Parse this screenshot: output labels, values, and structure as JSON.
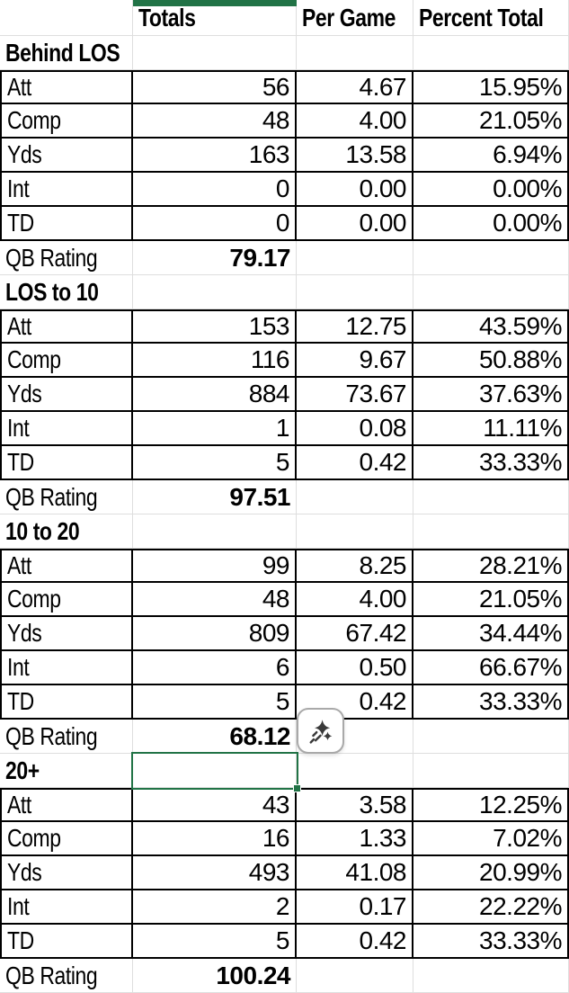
{
  "colors": {
    "selection_green": "#217346",
    "grid_line": "#dedede",
    "data_border": "#000000",
    "background": "#ffffff"
  },
  "header": {
    "columns": [
      "Totals",
      "Per Game",
      "Percent Total"
    ]
  },
  "sections": [
    {
      "title": "Behind LOS",
      "rows": [
        {
          "label": "Att",
          "totals": "56",
          "per_game": "4.67",
          "percent_total": "15.95%"
        },
        {
          "label": "Comp",
          "totals": "48",
          "per_game": "4.00",
          "percent_total": "21.05%"
        },
        {
          "label": "Yds",
          "totals": "163",
          "per_game": "13.58",
          "percent_total": "6.94%"
        },
        {
          "label": "Int",
          "totals": "0",
          "per_game": "0.00",
          "percent_total": "0.00%"
        },
        {
          "label": "TD",
          "totals": "0",
          "per_game": "0.00",
          "percent_total": "0.00%"
        }
      ],
      "qb_rating": {
        "label": "QB Rating",
        "value": "79.17"
      }
    },
    {
      "title": "LOS to 10",
      "rows": [
        {
          "label": "Att",
          "totals": "153",
          "per_game": "12.75",
          "percent_total": "43.59%"
        },
        {
          "label": "Comp",
          "totals": "116",
          "per_game": "9.67",
          "percent_total": "50.88%"
        },
        {
          "label": "Yds",
          "totals": "884",
          "per_game": "73.67",
          "percent_total": "37.63%"
        },
        {
          "label": "Int",
          "totals": "1",
          "per_game": "0.08",
          "percent_total": "11.11%"
        },
        {
          "label": "TD",
          "totals": "5",
          "per_game": "0.42",
          "percent_total": "33.33%"
        }
      ],
      "qb_rating": {
        "label": "QB Rating",
        "value": "97.51"
      }
    },
    {
      "title": "10 to 20",
      "rows": [
        {
          "label": "Att",
          "totals": "99",
          "per_game": "8.25",
          "percent_total": "28.21%"
        },
        {
          "label": "Comp",
          "totals": "48",
          "per_game": "4.00",
          "percent_total": "21.05%"
        },
        {
          "label": "Yds",
          "totals": "809",
          "per_game": "67.42",
          "percent_total": "34.44%"
        },
        {
          "label": "Int",
          "totals": "6",
          "per_game": "0.50",
          "percent_total": "66.67%"
        },
        {
          "label": "TD",
          "totals": "5",
          "per_game": "0.42",
          "percent_total": "33.33%"
        }
      ],
      "qb_rating": {
        "label": "QB Rating",
        "value": "68.12"
      }
    },
    {
      "title": "20+",
      "rows": [
        {
          "label": "Att",
          "totals": "43",
          "per_game": "3.58",
          "percent_total": "12.25%"
        },
        {
          "label": "Comp",
          "totals": "16",
          "per_game": "1.33",
          "percent_total": "7.02%"
        },
        {
          "label": "Yds",
          "totals": "493",
          "per_game": "41.08",
          "percent_total": "20.99%"
        },
        {
          "label": "Int",
          "totals": "2",
          "per_game": "0.17",
          "percent_total": "22.22%"
        },
        {
          "label": "TD",
          "totals": "5",
          "per_game": "0.42",
          "percent_total": "33.33%"
        }
      ],
      "qb_rating": {
        "label": "QB Rating",
        "value": "100.24"
      }
    }
  ],
  "selection": {
    "selected_cell": {
      "section": "20+",
      "column": "Totals",
      "value": ""
    }
  },
  "copilot_button": {
    "icon": "copilot-sparkle-icon"
  }
}
